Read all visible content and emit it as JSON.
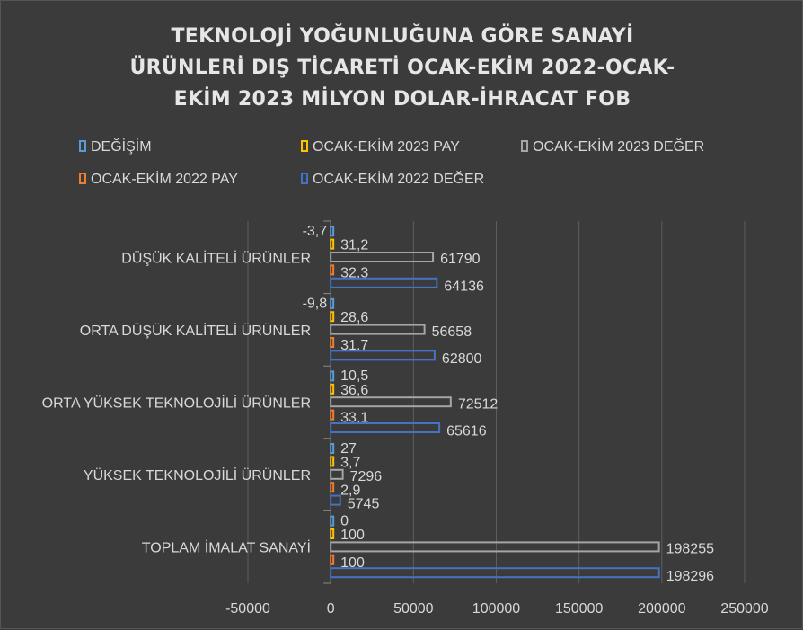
{
  "chart_data": {
    "type": "bar",
    "orientation": "horizontal",
    "title_lines": [
      "TEKNOLOJİ YOĞUNLUĞUNA GÖRE SANAYİ",
      "ÜRÜNLERİ DIŞ TİCARETİ OCAK-EKİM 2022-OCAK-",
      "EKİM 2023 MİLYON DOLAR-İHRACAT FOB"
    ],
    "categories": [
      "DÜŞÜK KALİTELİ ÜRÜNLER",
      "ORTA DÜŞÜK KALİTELİ ÜRÜNLER",
      "ORTA YÜKSEK TEKNOLOJİLİ ÜRÜNLER",
      "YÜKSEK TEKNOLOJİLİ ÜRÜNLER",
      "TOPLAM İMALAT SANAYİ"
    ],
    "series": [
      {
        "name": "DEĞİŞİM",
        "color": "#5b9bd5",
        "values": [
          -3.7,
          -9.8,
          10.5,
          27,
          0
        ],
        "labels": [
          "-3,7",
          "-9,8",
          "10,5",
          "27",
          "0"
        ]
      },
      {
        "name": "OCAK-EKİM 2023 PAY",
        "color": "#ffc000",
        "values": [
          31.2,
          28.6,
          36.6,
          3.7,
          100
        ],
        "labels": [
          "31,2",
          "28,6",
          "36,6",
          "3,7",
          "100"
        ]
      },
      {
        "name": "OCAK-EKİM 2023 DEĞER",
        "color": "#a5a5a5",
        "values": [
          61790,
          56658,
          72512,
          7296,
          198255
        ],
        "labels": [
          "61790",
          "56658",
          "72512",
          "7296",
          "198255"
        ]
      },
      {
        "name": "OCAK-EKİM 2022 PAY",
        "color": "#ed7d31",
        "values": [
          32.3,
          31.7,
          33.1,
          2.9,
          100
        ],
        "labels": [
          "32,3",
          "31,7",
          "33,1",
          "2,9",
          "100"
        ]
      },
      {
        "name": "OCAK-EKİM 2022 DEĞER",
        "color": "#4472c4",
        "values": [
          64136,
          62800,
          65616,
          5745,
          198296
        ],
        "labels": [
          "64136",
          "62800",
          "65616",
          "5745",
          "198296"
        ]
      }
    ],
    "xlim": [
      -50000,
      250000
    ],
    "x_ticks": [
      -50000,
      0,
      50000,
      100000,
      150000,
      200000,
      250000
    ],
    "x_tick_labels": [
      "-50000",
      "0",
      "50000",
      "100000",
      "150000",
      "200000",
      "250000"
    ],
    "grid": "vertical",
    "legend_position": "top"
  }
}
